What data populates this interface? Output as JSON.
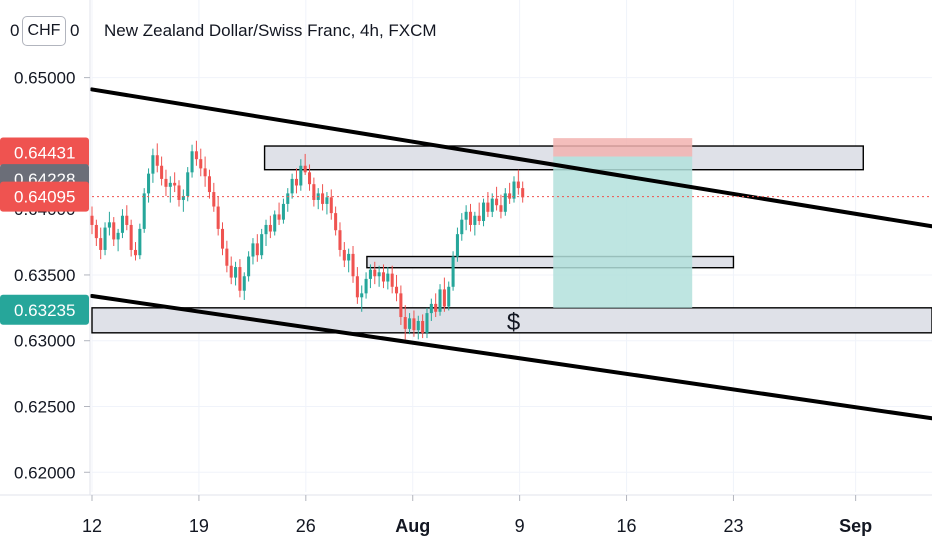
{
  "header": {
    "title": "New Zealand Dollar/Swiss Franc, 4h, FXCM",
    "currency_badge": "CHF",
    "axis_stub_left": "0",
    "axis_stub_right": "0"
  },
  "colors": {
    "up": "#26a69a",
    "down": "#ef5350",
    "line": "#000000",
    "zone_fill": "#dfe1e8",
    "target_fill": "#b3e0dc",
    "stop_fill": "#f2b3b0",
    "price_line": "#ef5350"
  },
  "chart_data": {
    "type": "candlestick",
    "title": "New Zealand Dollar/Swiss Franc, 4h, FXCM",
    "ylim": [
      0.6185,
      0.6559
    ],
    "x_ticks": [
      "12",
      "19",
      "26",
      "Aug",
      "9",
      "16",
      "23",
      "Sep"
    ],
    "y_ticks": [
      "0.65000",
      "0.63500",
      "0.63000",
      "0.62500",
      "0.62000"
    ],
    "y_ticks_partial": [
      "0.64000"
    ],
    "price_badges": [
      {
        "label": "0.64431",
        "value": 0.64431,
        "color": "#ef5350"
      },
      {
        "label": "0.64228",
        "value": 0.64228,
        "color": "#6b6e78"
      },
      {
        "label": "0.64095",
        "value": 0.64095,
        "color": "#ef5350"
      },
      {
        "label": "0.63235",
        "value": 0.63235,
        "color": "#26a69a"
      }
    ],
    "series_ohlc": [
      [
        0.6395,
        0.6402,
        0.6381,
        0.6388
      ],
      [
        0.6388,
        0.6392,
        0.6372,
        0.6378
      ],
      [
        0.6378,
        0.6386,
        0.6362,
        0.6369
      ],
      [
        0.6369,
        0.639,
        0.6365,
        0.6386
      ],
      [
        0.6386,
        0.6398,
        0.638,
        0.639
      ],
      [
        0.639,
        0.6394,
        0.6372,
        0.6377
      ],
      [
        0.6377,
        0.6385,
        0.6368,
        0.6382
      ],
      [
        0.6382,
        0.64,
        0.6378,
        0.6395
      ],
      [
        0.6395,
        0.6403,
        0.6384,
        0.6388
      ],
      [
        0.6388,
        0.6392,
        0.6364,
        0.6369
      ],
      [
        0.6369,
        0.6375,
        0.6361,
        0.6365
      ],
      [
        0.6365,
        0.6389,
        0.6362,
        0.6385
      ],
      [
        0.6385,
        0.6416,
        0.6382,
        0.6412
      ],
      [
        0.6412,
        0.6431,
        0.6405,
        0.6427
      ],
      [
        0.6427,
        0.6446,
        0.642,
        0.6441
      ],
      [
        0.6441,
        0.645,
        0.6428,
        0.6433
      ],
      [
        0.6433,
        0.644,
        0.6418,
        0.6423
      ],
      [
        0.6423,
        0.643,
        0.641,
        0.6417
      ],
      [
        0.6417,
        0.6425,
        0.6405,
        0.642
      ],
      [
        0.642,
        0.6428,
        0.6413,
        0.6418
      ],
      [
        0.6418,
        0.6422,
        0.6402,
        0.6407
      ],
      [
        0.6407,
        0.6415,
        0.6398,
        0.641
      ],
      [
        0.641,
        0.6432,
        0.6406,
        0.6428
      ],
      [
        0.6428,
        0.6449,
        0.6424,
        0.6444
      ],
      [
        0.6444,
        0.6452,
        0.6433,
        0.6438
      ],
      [
        0.6438,
        0.6446,
        0.6425,
        0.6431
      ],
      [
        0.6431,
        0.644,
        0.6417,
        0.6425
      ],
      [
        0.6425,
        0.643,
        0.6408,
        0.6413
      ],
      [
        0.6413,
        0.642,
        0.6398,
        0.6402
      ],
      [
        0.6402,
        0.641,
        0.638,
        0.6385
      ],
      [
        0.6385,
        0.639,
        0.6365,
        0.637
      ],
      [
        0.637,
        0.6376,
        0.6352,
        0.6357
      ],
      [
        0.6357,
        0.6364,
        0.6343,
        0.6348
      ],
      [
        0.6348,
        0.636,
        0.6342,
        0.6356
      ],
      [
        0.6356,
        0.6362,
        0.6333,
        0.6338
      ],
      [
        0.6338,
        0.6352,
        0.6331,
        0.6349
      ],
      [
        0.6349,
        0.6368,
        0.6345,
        0.6364
      ],
      [
        0.6364,
        0.6378,
        0.6358,
        0.6374
      ],
      [
        0.6374,
        0.6381,
        0.636,
        0.6365
      ],
      [
        0.6365,
        0.6385,
        0.6362,
        0.6381
      ],
      [
        0.6381,
        0.6392,
        0.6372,
        0.6388
      ],
      [
        0.6388,
        0.6395,
        0.6378,
        0.6383
      ],
      [
        0.6383,
        0.6399,
        0.638,
        0.6396
      ],
      [
        0.6396,
        0.6405,
        0.6388,
        0.6392
      ],
      [
        0.6392,
        0.6408,
        0.6389,
        0.6404
      ],
      [
        0.6404,
        0.6416,
        0.6398,
        0.6412
      ],
      [
        0.6412,
        0.6427,
        0.6408,
        0.6423
      ],
      [
        0.6423,
        0.6431,
        0.6412,
        0.6418
      ],
      [
        0.6418,
        0.6438,
        0.6414,
        0.6433
      ],
      [
        0.6433,
        0.6442,
        0.6426,
        0.6428
      ],
      [
        0.6428,
        0.6434,
        0.6414,
        0.6419
      ],
      [
        0.6419,
        0.6424,
        0.6402,
        0.6407
      ],
      [
        0.6407,
        0.6416,
        0.64,
        0.6412
      ],
      [
        0.6412,
        0.6419,
        0.6399,
        0.6404
      ],
      [
        0.6404,
        0.6413,
        0.6396,
        0.6409
      ],
      [
        0.6409,
        0.6415,
        0.6392,
        0.6397
      ],
      [
        0.6397,
        0.6402,
        0.638,
        0.6384
      ],
      [
        0.6384,
        0.639,
        0.6364,
        0.6369
      ],
      [
        0.6369,
        0.6375,
        0.6356,
        0.6361
      ],
      [
        0.6361,
        0.637,
        0.6352,
        0.6366
      ],
      [
        0.6366,
        0.6372,
        0.6344,
        0.6349
      ],
      [
        0.6349,
        0.6356,
        0.6328,
        0.6333
      ],
      [
        0.6333,
        0.6342,
        0.6322,
        0.6336
      ],
      [
        0.6336,
        0.6352,
        0.6332,
        0.6347
      ],
      [
        0.6347,
        0.6358,
        0.634,
        0.6354
      ],
      [
        0.6354,
        0.636,
        0.6343,
        0.6349
      ],
      [
        0.6349,
        0.6357,
        0.6341,
        0.6352
      ],
      [
        0.6352,
        0.6358,
        0.634,
        0.6345
      ],
      [
        0.6345,
        0.6356,
        0.6339,
        0.6351
      ],
      [
        0.6351,
        0.6357,
        0.6336,
        0.6341
      ],
      [
        0.6341,
        0.635,
        0.633,
        0.6336
      ],
      [
        0.6336,
        0.6342,
        0.6312,
        0.6318
      ],
      [
        0.6318,
        0.6327,
        0.6301,
        0.6309
      ],
      [
        0.6309,
        0.6321,
        0.6305,
        0.6317
      ],
      [
        0.6317,
        0.6323,
        0.6303,
        0.6308
      ],
      [
        0.6308,
        0.6319,
        0.6301,
        0.6315
      ],
      [
        0.6315,
        0.632,
        0.6302,
        0.6306
      ],
      [
        0.6306,
        0.6325,
        0.6302,
        0.6321
      ],
      [
        0.6321,
        0.6332,
        0.6315,
        0.6328
      ],
      [
        0.6328,
        0.6336,
        0.6318,
        0.6322
      ],
      [
        0.6322,
        0.6343,
        0.6319,
        0.6339
      ],
      [
        0.6339,
        0.6348,
        0.6322,
        0.6326
      ],
      [
        0.6326,
        0.6345,
        0.6323,
        0.6341
      ],
      [
        0.6341,
        0.6368,
        0.6338,
        0.6364
      ],
      [
        0.6364,
        0.6386,
        0.636,
        0.6381
      ],
      [
        0.6381,
        0.6397,
        0.6376,
        0.6392
      ],
      [
        0.6392,
        0.6403,
        0.6384,
        0.6398
      ],
      [
        0.6398,
        0.6404,
        0.6383,
        0.6388
      ],
      [
        0.6388,
        0.6398,
        0.638,
        0.6395
      ],
      [
        0.6395,
        0.6405,
        0.6388,
        0.6391
      ],
      [
        0.6391,
        0.6408,
        0.6387,
        0.6405
      ],
      [
        0.6405,
        0.6413,
        0.6394,
        0.6398
      ],
      [
        0.6398,
        0.6412,
        0.6394,
        0.6408
      ],
      [
        0.6408,
        0.6417,
        0.6399,
        0.6403
      ],
      [
        0.6403,
        0.6411,
        0.6393,
        0.6398
      ],
      [
        0.6398,
        0.6416,
        0.6395,
        0.6412
      ],
      [
        0.6412,
        0.642,
        0.6404,
        0.6408
      ],
      [
        0.6408,
        0.6425,
        0.6405,
        0.6421
      ],
      [
        0.6421,
        0.643,
        0.6411,
        0.6416
      ],
      [
        0.6416,
        0.6421,
        0.6405,
        0.6409
      ]
    ],
    "series_start_time": 0,
    "series_end_time": 28.2,
    "x_tick_times": [
      0,
      7,
      14,
      21,
      28,
      35,
      42,
      50
    ],
    "trend_lines": [
      {
        "t1": 0,
        "p1": 0.6491,
        "t2": 55,
        "p2": 0.6387
      },
      {
        "t1": 0,
        "p1": 0.6334,
        "t2": 55,
        "p2": 0.6241
      }
    ],
    "zones": [
      {
        "t1": 11.3,
        "t2": 50.5,
        "p1": 0.643,
        "p2": 0.6448
      },
      {
        "t1": 18.0,
        "t2": 42.0,
        "p1": 0.63555,
        "p2": 0.6364
      },
      {
        "t1": 0,
        "t2": 55,
        "p1": 0.6306,
        "p2": 0.6325
      }
    ],
    "position": {
      "t1": 30.2,
      "t2": 39.3,
      "entry": 0.644,
      "stop": 0.6454,
      "target": 0.6325
    },
    "current_price": 0.64095,
    "annotation": "$",
    "annotation_anchor": {
      "t": 27.6,
      "p": 0.6308
    }
  }
}
